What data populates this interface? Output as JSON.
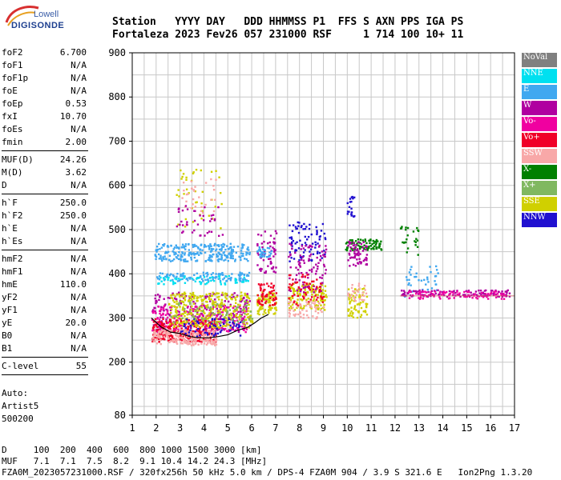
{
  "logo": {
    "line1": "Lowell",
    "line2": "DIGISONDE"
  },
  "header": {
    "line1": "Station   YYYY DAY   DDD HHMMSS P1  FFS S AXN PPS IGA PS",
    "line2": "Fortaleza 2023 Fev26 057 231000 RSF     1 714 100 10+ 11"
  },
  "params_groups": [
    [
      {
        "k": "foF2",
        "v": "6.700"
      },
      {
        "k": "foF1",
        "v": "N/A"
      },
      {
        "k": "foF1p",
        "v": "N/A"
      },
      {
        "k": "foE",
        "v": "N/A"
      },
      {
        "k": "foEp",
        "v": "0.53"
      },
      {
        "k": "fxI",
        "v": "10.70"
      },
      {
        "k": "foEs",
        "v": "N/A"
      },
      {
        "k": "fmin",
        "v": "2.00"
      }
    ],
    [
      {
        "k": "MUF(D)",
        "v": "24.26"
      },
      {
        "k": "M(D)",
        "v": "3.62"
      },
      {
        "k": "D",
        "v": "N/A"
      }
    ],
    [
      {
        "k": "h`F",
        "v": "250.0"
      },
      {
        "k": "h`F2",
        "v": "250.0"
      },
      {
        "k": "h`E",
        "v": "N/A"
      },
      {
        "k": "h`Es",
        "v": "N/A"
      }
    ],
    [
      {
        "k": "hmF2",
        "v": "N/A"
      },
      {
        "k": "hmF1",
        "v": "N/A"
      },
      {
        "k": "hmE",
        "v": "110.0"
      },
      {
        "k": "yF2",
        "v": "N/A"
      },
      {
        "k": "yF1",
        "v": "N/A"
      },
      {
        "k": "yE",
        "v": "20.0"
      },
      {
        "k": "B0",
        "v": "N/A"
      },
      {
        "k": "B1",
        "v": "N/A"
      }
    ],
    [
      {
        "k": "C-level",
        "v": "55"
      }
    ]
  ],
  "auto": {
    "line1": "Auto:",
    "line2": "Artist5",
    "line3": "500200"
  },
  "bottom": {
    "line1": "D     100  200  400  600  800 1000 1500 3000 [km]",
    "line2": "MUF   7.1  7.1  7.5  8.2  9.1 10.4 14.2 24.3 [MHz]",
    "line3": "FZA0M_2023057231000.RSF / 320fx256h 50 kHz 5.0 km / DPS-4 FZA0M 904 / 3.9 S 321.6 E   Ion2Png 1.3.20"
  },
  "legend": [
    {
      "label": "NoVal",
      "color": "#808080"
    },
    {
      "label": "NNE",
      "color": "#00e0f0"
    },
    {
      "label": "E",
      "color": "#40a8f0"
    },
    {
      "label": "W",
      "color": "#b000a0"
    },
    {
      "label": "Vo-",
      "color": "#f000a0"
    },
    {
      "label": "Vo+",
      "color": "#f00028"
    },
    {
      "label": "SSW",
      "color": "#f8a8a8"
    },
    {
      "label": "X-",
      "color": "#008000"
    },
    {
      "label": "X+",
      "color": "#80b860"
    },
    {
      "label": "SSE",
      "color": "#d0d000"
    },
    {
      "label": "NNW",
      "color": "#2010d0"
    }
  ],
  "chart_data": {
    "type": "scatter",
    "xlim": [
      1,
      17
    ],
    "ylim": [
      80,
      900
    ],
    "xticks": [
      1,
      2,
      3,
      4,
      5,
      6,
      7,
      8,
      9,
      10,
      11,
      12,
      13,
      14,
      15,
      16,
      17
    ],
    "yticks": [
      80,
      200,
      300,
      400,
      500,
      600,
      700,
      800,
      900
    ],
    "grid": true,
    "legend_position": "right",
    "trace_line": {
      "x": [
        1.8,
        2.2,
        2.6,
        3.0,
        3.4,
        3.8,
        4.2,
        4.6,
        5.0,
        5.4,
        5.8,
        6.1,
        6.4,
        6.7
      ],
      "y": [
        300,
        280,
        268,
        265,
        258,
        255,
        255,
        258,
        262,
        272,
        278,
        288,
        300,
        308
      ]
    },
    "clusters": [
      {
        "series": "E",
        "x": [
          1.9,
          5.9
        ],
        "y": [
          430,
          470
        ],
        "n": 260
      },
      {
        "series": "E",
        "x": [
          2.0,
          5.9
        ],
        "y": [
          385,
          405
        ],
        "n": 120
      },
      {
        "series": "NNE",
        "x": [
          2.0,
          5.9
        ],
        "y": [
          378,
          398
        ],
        "n": 60
      },
      {
        "series": "W",
        "x": [
          1.8,
          5.9
        ],
        "y": [
          270,
          360
        ],
        "n": 260
      },
      {
        "series": "Vo+",
        "x": [
          1.8,
          4.5
        ],
        "y": [
          248,
          300
        ],
        "n": 320
      },
      {
        "series": "Vo-",
        "x": [
          1.8,
          5.8
        ],
        "y": [
          270,
          330
        ],
        "n": 160
      },
      {
        "series": "SSW",
        "x": [
          1.8,
          4.5
        ],
        "y": [
          240,
          275
        ],
        "n": 200
      },
      {
        "series": "SSE",
        "x": [
          2.5,
          6.0
        ],
        "y": [
          280,
          360
        ],
        "n": 320
      },
      {
        "series": "NNW",
        "x": [
          3.0,
          5.5
        ],
        "y": [
          260,
          300
        ],
        "n": 60
      },
      {
        "series": "X+",
        "x": [
          2.5,
          6.0
        ],
        "y": [
          290,
          340
        ],
        "n": 60
      },
      {
        "series": "SSE",
        "x": [
          2.8,
          4.8
        ],
        "y": [
          500,
          640
        ],
        "n": 40
      },
      {
        "series": "SSW",
        "x": [
          3.0,
          4.5
        ],
        "y": [
          540,
          620
        ],
        "n": 30
      },
      {
        "series": "W",
        "x": [
          2.8,
          4.8
        ],
        "y": [
          480,
          560
        ],
        "n": 40
      },
      {
        "series": "SSE",
        "x": [
          6.2,
          7.0
        ],
        "y": [
          310,
          360
        ],
        "n": 80
      },
      {
        "series": "Vo+",
        "x": [
          6.2,
          7.0
        ],
        "y": [
          330,
          380
        ],
        "n": 60
      },
      {
        "series": "W",
        "x": [
          6.2,
          7.0
        ],
        "y": [
          400,
          500
        ],
        "n": 60
      },
      {
        "series": "E",
        "x": [
          6.2,
          6.8
        ],
        "y": [
          440,
          465
        ],
        "n": 30
      },
      {
        "series": "NNW",
        "x": [
          7.5,
          9.1
        ],
        "y": [
          430,
          520
        ],
        "n": 80
      },
      {
        "series": "SSE",
        "x": [
          7.5,
          9.1
        ],
        "y": [
          320,
          380
        ],
        "n": 140
      },
      {
        "series": "W",
        "x": [
          7.5,
          9.1
        ],
        "y": [
          360,
          470
        ],
        "n": 100
      },
      {
        "series": "Vo+",
        "x": [
          7.5,
          9.0
        ],
        "y": [
          330,
          400
        ],
        "n": 60
      },
      {
        "series": "SSW",
        "x": [
          7.5,
          9.0
        ],
        "y": [
          300,
          340
        ],
        "n": 50
      },
      {
        "series": "NNW",
        "x": [
          9.9,
          10.3
        ],
        "y": [
          530,
          580
        ],
        "n": 20
      },
      {
        "series": "X-",
        "x": [
          9.9,
          11.4
        ],
        "y": [
          455,
          480
        ],
        "n": 80
      },
      {
        "series": "W",
        "x": [
          10.0,
          10.8
        ],
        "y": [
          420,
          475
        ],
        "n": 60
      },
      {
        "series": "SSE",
        "x": [
          10.0,
          10.8
        ],
        "y": [
          300,
          370
        ],
        "n": 70
      },
      {
        "series": "SSW",
        "x": [
          10.0,
          10.8
        ],
        "y": [
          340,
          380
        ],
        "n": 30
      },
      {
        "series": "X-",
        "x": [
          12.1,
          13.0
        ],
        "y": [
          440,
          510
        ],
        "n": 25
      },
      {
        "series": "E",
        "x": [
          12.2,
          13.8
        ],
        "y": [
          350,
          420
        ],
        "n": 40
      },
      {
        "series": "W",
        "x": [
          12.2,
          16.8
        ],
        "y": [
          350,
          365
        ],
        "n": 120
      },
      {
        "series": "Vo-",
        "x": [
          12.5,
          16.8
        ],
        "y": [
          345,
          362
        ],
        "n": 80
      }
    ]
  }
}
